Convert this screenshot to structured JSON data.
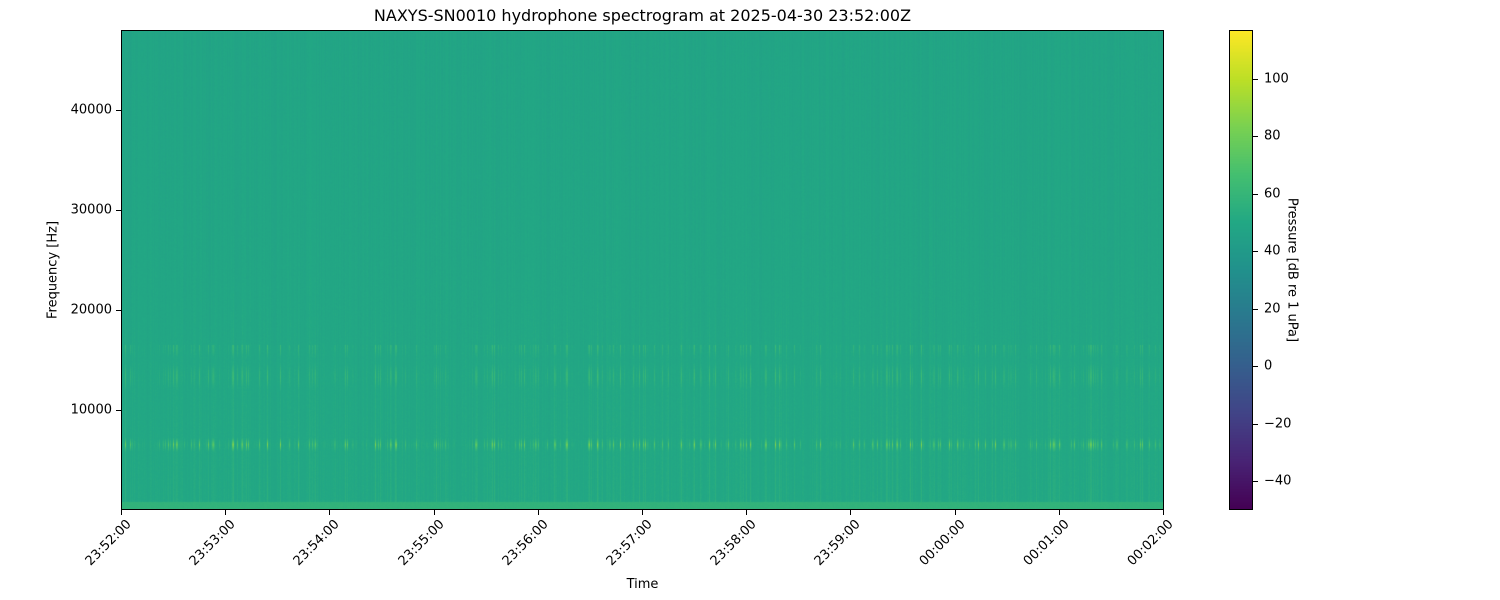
{
  "chart_data": {
    "type": "heatmap",
    "title": "NAXYS-SN0010 hydrophone spectrogram at 2025-04-30 23:52:00Z",
    "xlabel": "Time",
    "ylabel": "Frequency [Hz]",
    "x_tick_labels": [
      "23:52:00",
      "23:53:00",
      "23:54:00",
      "23:55:00",
      "23:56:00",
      "23:57:00",
      "23:58:00",
      "23:59:00",
      "00:00:00",
      "00:01:00",
      "00:02:00"
    ],
    "xlim": [
      "23:52:00",
      "00:02:00"
    ],
    "y_ticks": [
      10000,
      20000,
      30000,
      40000
    ],
    "ylim": [
      0,
      48000
    ],
    "colormap": "viridis",
    "colorbar": {
      "label": "Pressure [dB re 1 uPa]",
      "ticks": [
        100,
        80,
        60,
        40,
        20,
        0,
        -20,
        -40
      ],
      "range": [
        -50,
        117
      ]
    },
    "background_level_db": 50,
    "features": [
      {
        "type": "intermittent tonal band",
        "frequency_hz": 6500,
        "peak_db": 85
      },
      {
        "type": "intermittent band",
        "frequency_range_hz": [
          12000,
          16500
        ],
        "peak_db": 70
      },
      {
        "type": "broadband low-frequency strip",
        "frequency_range_hz": [
          0,
          800
        ],
        "level_db": 58
      }
    ]
  }
}
